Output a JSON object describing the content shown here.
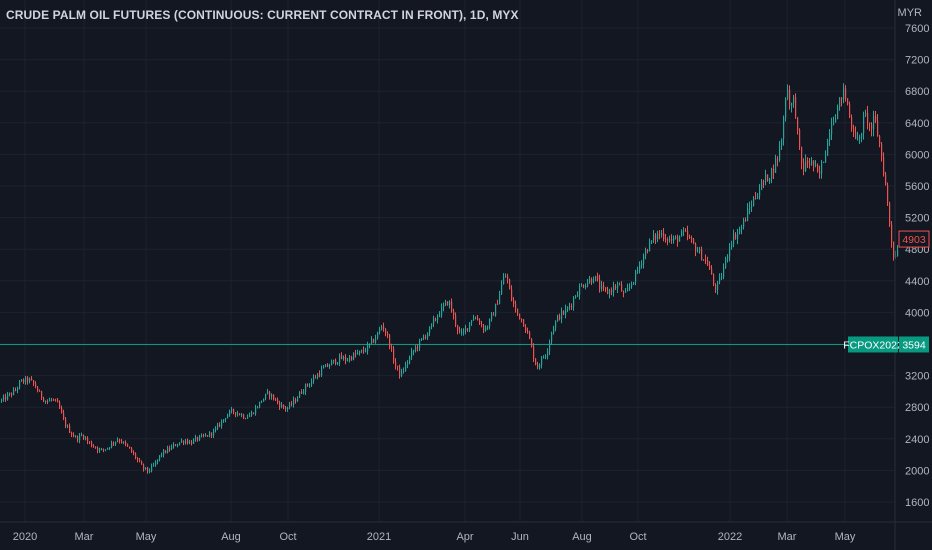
{
  "chart_data": {
    "type": "candlestick",
    "title": "CRUDE PALM OIL FUTURES (CONTINUOUS: CURRENT CONTRACT IN FRONT), 1D, MYX",
    "y_unit": "MYR",
    "ylim": [
      1300,
      7900
    ],
    "y_ticks": [
      "7600",
      "7200",
      "6800",
      "6400",
      "6000",
      "5600",
      "5200",
      "4800",
      "4400",
      "4000",
      "3600",
      "3200",
      "2800",
      "2400",
      "2000",
      "1600"
    ],
    "x_ticks": [
      "2020",
      "Mar",
      "May",
      "Aug",
      "Oct",
      "2021",
      "Apr",
      "Jun",
      "Aug",
      "Oct",
      "2022",
      "Mar",
      "May"
    ],
    "grid": true,
    "last_price": {
      "value": 4903,
      "label": "4903",
      "color": "#ef5350"
    },
    "reference_line": {
      "name": "FCPOX2022",
      "value": 3594,
      "label": "3594",
      "color": "#089981"
    },
    "trend_points": [
      [
        0,
        2880
      ],
      [
        3,
        2900
      ],
      [
        8,
        2950
      ],
      [
        14,
        3000
      ],
      [
        20,
        3120
      ],
      [
        28,
        3150
      ],
      [
        34,
        3080
      ],
      [
        40,
        2950
      ],
      [
        46,
        2870
      ],
      [
        52,
        2900
      ],
      [
        58,
        2820
      ],
      [
        64,
        2600
      ],
      [
        70,
        2480
      ],
      [
        76,
        2400
      ],
      [
        82,
        2450
      ],
      [
        88,
        2350
      ],
      [
        94,
        2300
      ],
      [
        100,
        2250
      ],
      [
        106,
        2280
      ],
      [
        112,
        2350
      ],
      [
        118,
        2400
      ],
      [
        124,
        2330
      ],
      [
        130,
        2250
      ],
      [
        136,
        2150
      ],
      [
        142,
        2030
      ],
      [
        148,
        1990
      ],
      [
        154,
        2070
      ],
      [
        160,
        2200
      ],
      [
        166,
        2250
      ],
      [
        172,
        2300
      ],
      [
        178,
        2350
      ],
      [
        184,
        2380
      ],
      [
        190,
        2350
      ],
      [
        196,
        2400
      ],
      [
        202,
        2420
      ],
      [
        208,
        2450
      ],
      [
        214,
        2500
      ],
      [
        220,
        2600
      ],
      [
        226,
        2700
      ],
      [
        232,
        2750
      ],
      [
        238,
        2720
      ],
      [
        244,
        2680
      ],
      [
        250,
        2700
      ],
      [
        256,
        2800
      ],
      [
        262,
        2900
      ],
      [
        268,
        2980
      ],
      [
        274,
        2900
      ],
      [
        280,
        2820
      ],
      [
        286,
        2780
      ],
      [
        292,
        2850
      ],
      [
        298,
        2950
      ],
      [
        304,
        3050
      ],
      [
        310,
        3120
      ],
      [
        316,
        3200
      ],
      [
        322,
        3280
      ],
      [
        328,
        3330
      ],
      [
        334,
        3380
      ],
      [
        340,
        3420
      ],
      [
        346,
        3400
      ],
      [
        352,
        3450
      ],
      [
        358,
        3480
      ],
      [
        364,
        3520
      ],
      [
        370,
        3600
      ],
      [
        376,
        3700
      ],
      [
        382,
        3850
      ],
      [
        388,
        3650
      ],
      [
        394,
        3350
      ],
      [
        400,
        3200
      ],
      [
        406,
        3350
      ],
      [
        412,
        3500
      ],
      [
        418,
        3600
      ],
      [
        424,
        3700
      ],
      [
        430,
        3800
      ],
      [
        436,
        3950
      ],
      [
        442,
        4050
      ],
      [
        448,
        4150
      ],
      [
        454,
        3900
      ],
      [
        460,
        3700
      ],
      [
        466,
        3800
      ],
      [
        472,
        3950
      ],
      [
        478,
        3900
      ],
      [
        484,
        3780
      ],
      [
        490,
        3900
      ],
      [
        496,
        4100
      ],
      [
        502,
        4400
      ],
      [
        506,
        4480
      ],
      [
        510,
        4200
      ],
      [
        516,
        4000
      ],
      [
        522,
        3900
      ],
      [
        528,
        3700
      ],
      [
        532,
        3500
      ],
      [
        536,
        3300
      ],
      [
        540,
        3380
      ],
      [
        546,
        3500
      ],
      [
        552,
        3800
      ],
      [
        558,
        3950
      ],
      [
        564,
        4000
      ],
      [
        570,
        4100
      ],
      [
        576,
        4250
      ],
      [
        582,
        4350
      ],
      [
        588,
        4400
      ],
      [
        594,
        4450
      ],
      [
        600,
        4300
      ],
      [
        606,
        4250
      ],
      [
        612,
        4300
      ],
      [
        618,
        4350
      ],
      [
        624,
        4200
      ],
      [
        630,
        4350
      ],
      [
        636,
        4500
      ],
      [
        642,
        4700
      ],
      [
        648,
        4850
      ],
      [
        654,
        4950
      ],
      [
        660,
        5000
      ],
      [
        666,
        4950
      ],
      [
        672,
        4900
      ],
      [
        678,
        4950
      ],
      [
        684,
        5000
      ],
      [
        690,
        4900
      ],
      [
        696,
        4800
      ],
      [
        702,
        4700
      ],
      [
        708,
        4600
      ],
      [
        714,
        4300
      ],
      [
        718,
        4350
      ],
      [
        724,
        4600
      ],
      [
        730,
        4900
      ],
      [
        736,
        5000
      ],
      [
        742,
        5100
      ],
      [
        748,
        5300
      ],
      [
        754,
        5450
      ],
      [
        760,
        5600
      ],
      [
        766,
        5700
      ],
      [
        772,
        5800
      ],
      [
        778,
        6000
      ],
      [
        782,
        6300
      ],
      [
        786,
        6900
      ],
      [
        790,
        6600
      ],
      [
        794,
        6700
      ],
      [
        798,
        6100
      ],
      [
        802,
        5800
      ],
      [
        806,
        5900
      ],
      [
        810,
        5900
      ],
      [
        814,
        5850
      ],
      [
        818,
        5700
      ],
      [
        822,
        5900
      ],
      [
        826,
        6100
      ],
      [
        830,
        6400
      ],
      [
        834,
        6500
      ],
      [
        838,
        6600
      ],
      [
        842,
        6800
      ],
      [
        846,
        6700
      ],
      [
        850,
        6400
      ],
      [
        854,
        6300
      ],
      [
        858,
        6100
      ],
      [
        862,
        6400
      ],
      [
        866,
        6500
      ],
      [
        870,
        6300
      ],
      [
        874,
        6450
      ],
      [
        878,
        6200
      ],
      [
        882,
        5900
      ],
      [
        886,
        5500
      ],
      [
        890,
        5000
      ],
      [
        894,
        4650
      ],
      [
        898,
        4903
      ]
    ]
  }
}
